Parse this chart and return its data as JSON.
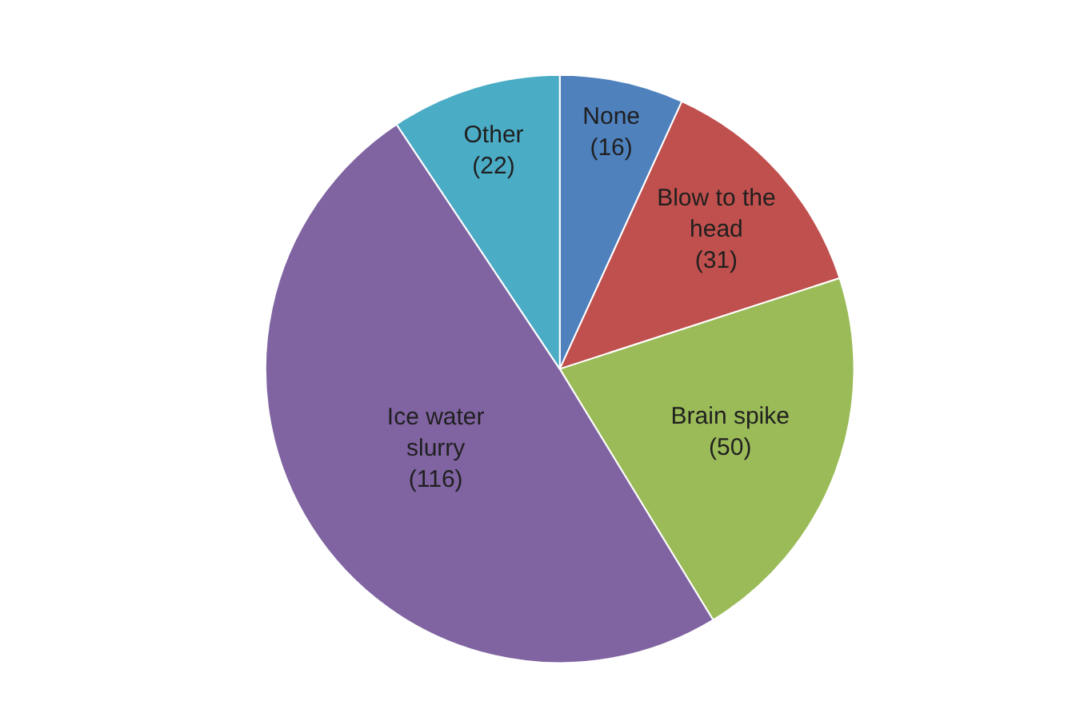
{
  "chart_data": {
    "type": "pie",
    "categories": [
      "None",
      "Blow to the head",
      "Brain spike",
      "Ice water slurry",
      "Other"
    ],
    "values": [
      16,
      31,
      50,
      116,
      22
    ],
    "colors": [
      "#4f81bd",
      "#c0504d",
      "#9bbb59",
      "#8064a2",
      "#4bacc6"
    ],
    "value_labels": [
      "(16)",
      "(31)",
      "(50)",
      "(116)",
      "(22)"
    ],
    "legend": false
  }
}
